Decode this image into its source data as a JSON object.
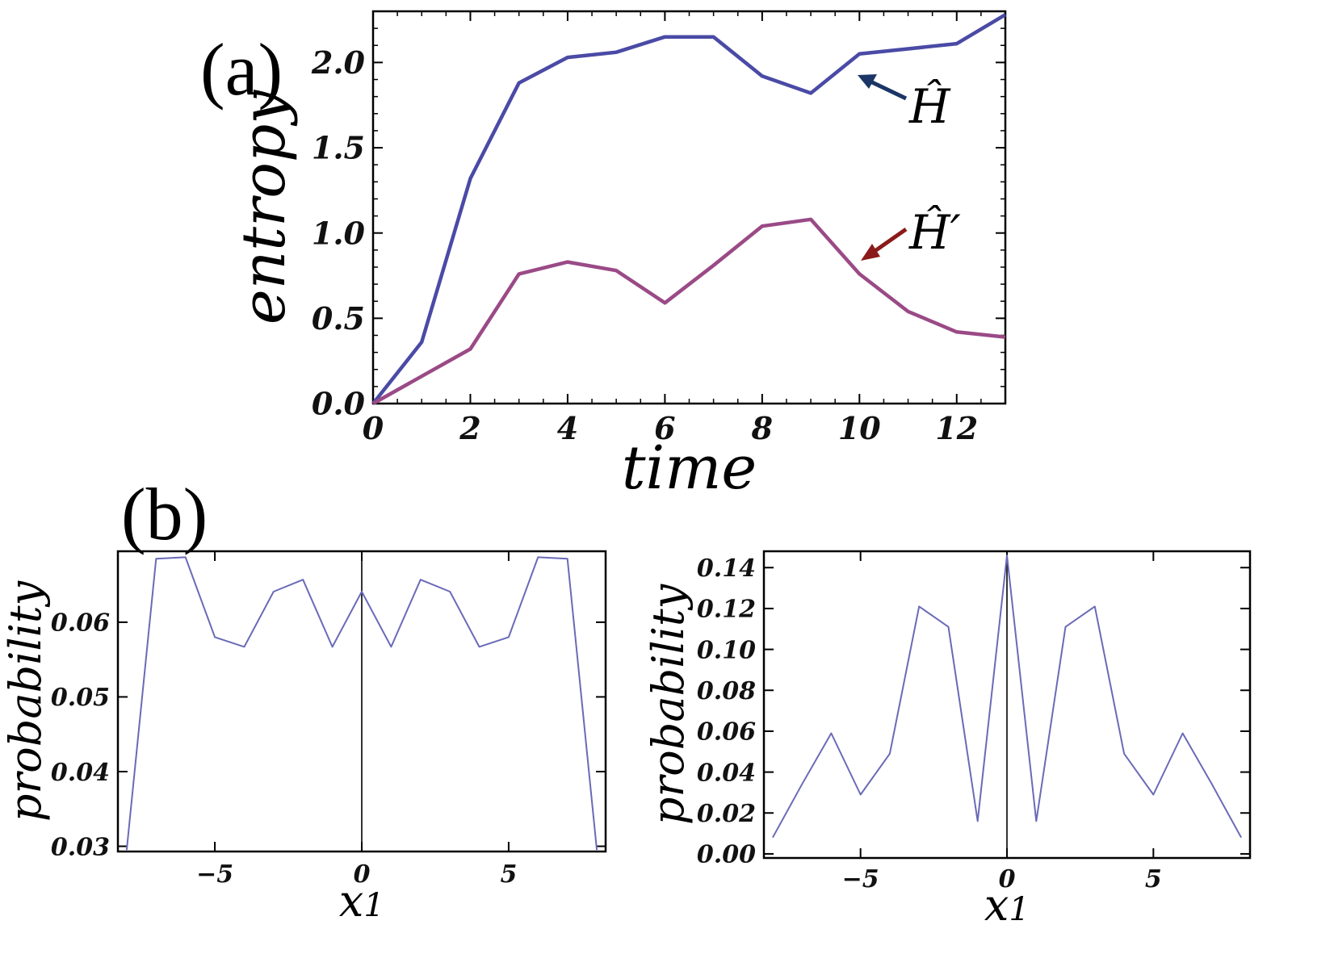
{
  "panels": {
    "a": "(a)",
    "b": "(b)"
  },
  "chart_data": [
    {
      "type": "line",
      "panel": "(a)",
      "xlabel": "time",
      "ylabel": "entropy",
      "xlim": [
        0,
        13
      ],
      "ylim": [
        0,
        2.3
      ],
      "xticks": [
        0,
        2,
        4,
        6,
        8,
        10,
        12
      ],
      "xtick_labels": [
        "0",
        "2",
        "4",
        "6",
        "8",
        "10",
        "12"
      ],
      "yticks": [
        0,
        0.5,
        1,
        1.5,
        2
      ],
      "ytick_labels": [
        "0.0",
        "0.5",
        "1.0",
        "1.5",
        "2.0"
      ],
      "x": [
        0,
        1,
        2,
        3,
        4,
        5,
        6,
        7,
        8,
        9,
        10,
        11,
        12,
        13
      ],
      "series": [
        {
          "name": "Ĥ",
          "color": "#4a4aa6",
          "values": [
            0,
            0.36,
            1.32,
            1.88,
            2.03,
            2.06,
            2.15,
            2.15,
            1.92,
            1.82,
            2.05,
            2.08,
            2.11,
            2.28
          ]
        },
        {
          "name": "Ĥ′",
          "color": "#9a4a86",
          "values": [
            0,
            0.16,
            0.32,
            0.76,
            0.83,
            0.78,
            0.59,
            0.81,
            1.04,
            1.08,
            0.76,
            0.54,
            0.42,
            0.39
          ]
        }
      ],
      "annotations": [
        {
          "text": "Ĥ",
          "arrow_color": "#1a3566"
        },
        {
          "text": "Ĥ′",
          "arrow_color": "#8b1a1a"
        }
      ]
    },
    {
      "type": "line",
      "panel": "(b) left",
      "xlabel": "x1",
      "ylabel": "probability",
      "xlim": [
        -8.3,
        8.3
      ],
      "ylim": [
        0.0293,
        0.0695
      ],
      "xticks": [
        -5,
        0,
        5
      ],
      "xtick_labels": [
        "−5",
        "0",
        "5"
      ],
      "yticks": [
        0.03,
        0.04,
        0.05,
        0.06
      ],
      "ytick_labels": [
        "0.03",
        "0.04",
        "0.05",
        "0.06"
      ],
      "x": [
        -8,
        -7,
        -6,
        -5,
        -4,
        -3,
        -2,
        -1,
        0,
        1,
        2,
        3,
        4,
        5,
        6,
        7,
        8
      ],
      "series": [
        {
          "name": "probability",
          "color": "#6a6ab8",
          "values": [
            0.0295,
            0.0685,
            0.0687,
            0.058,
            0.0567,
            0.0641,
            0.0657,
            0.0567,
            0.0641,
            0.0567,
            0.0657,
            0.0641,
            0.0567,
            0.058,
            0.0687,
            0.0685,
            0.0295
          ]
        }
      ]
    },
    {
      "type": "line",
      "panel": "(b) right",
      "xlabel": "x1",
      "ylabel": "probability",
      "xlim": [
        -8.3,
        8.3
      ],
      "ylim": [
        -0.002,
        0.148
      ],
      "xticks": [
        -5,
        0,
        5
      ],
      "xtick_labels": [
        "−5",
        "0",
        "5"
      ],
      "yticks": [
        0,
        0.02,
        0.04,
        0.06,
        0.08,
        0.1,
        0.12,
        0.14
      ],
      "ytick_labels": [
        "0.00",
        "0.02",
        "0.04",
        "0.06",
        "0.08",
        "0.10",
        "0.12",
        "0.14"
      ],
      "x": [
        -8,
        -7,
        -6,
        -5,
        -4,
        -3,
        -2,
        -1,
        0,
        1,
        2,
        3,
        4,
        5,
        6,
        7,
        8
      ],
      "series": [
        {
          "name": "probability",
          "color": "#6a6ab8",
          "values": [
            0.008,
            0.034,
            0.059,
            0.029,
            0.049,
            0.121,
            0.111,
            0.016,
            0.146,
            0.016,
            0.111,
            0.121,
            0.049,
            0.029,
            0.059,
            0.034,
            0.008
          ]
        }
      ]
    }
  ]
}
